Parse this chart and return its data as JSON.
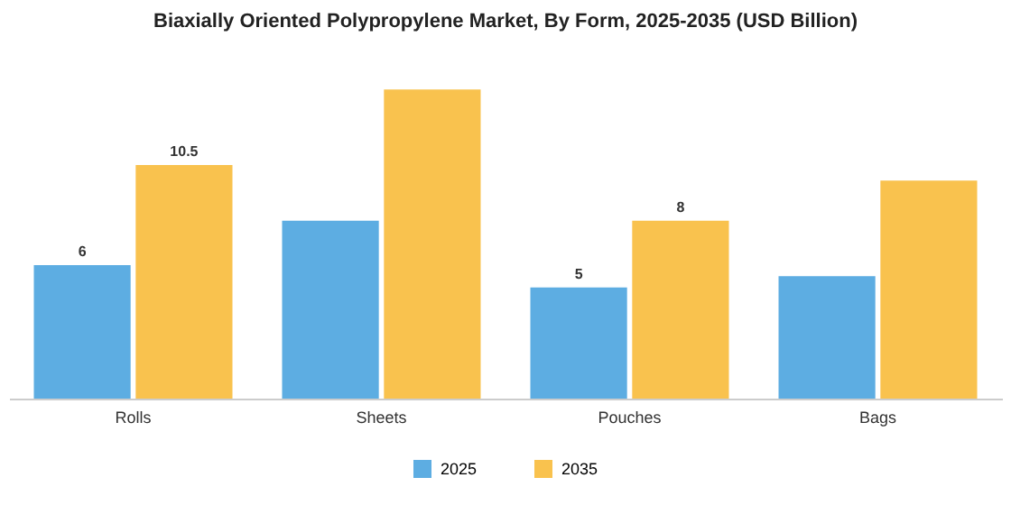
{
  "chart_data": {
    "type": "bar",
    "title": "Biaxially Oriented Polypropylene Market, By Form, 2025-2035 (USD Billion)",
    "categories": [
      "Rolls",
      "Sheets",
      "Pouches",
      "Bags"
    ],
    "series": [
      {
        "name": "2025",
        "color": "#5dade2",
        "values": [
          6,
          8,
          5,
          5.5
        ],
        "value_labels": [
          "6",
          null,
          "5",
          null
        ]
      },
      {
        "name": "2035",
        "color": "#f9c24e",
        "values": [
          10.5,
          13.9,
          8,
          9.8
        ],
        "value_labels": [
          "10.5",
          null,
          "8",
          null
        ]
      }
    ],
    "legend": "bottom"
  }
}
